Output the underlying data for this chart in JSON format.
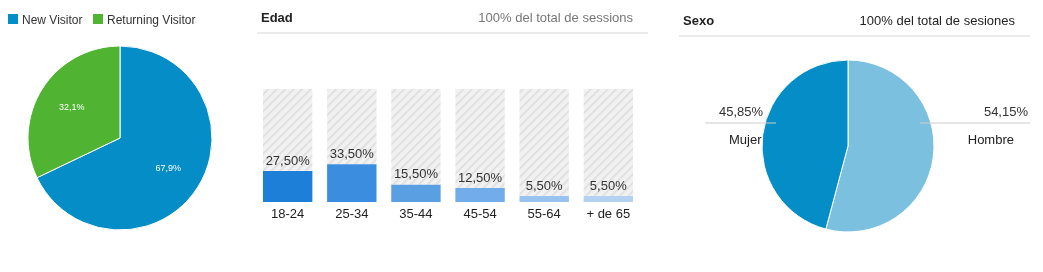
{
  "chart_data": [
    {
      "type": "pie",
      "categories": [
        "New Visitor",
        "Returning Visitor"
      ],
      "values": [
        67.9,
        32.1
      ],
      "colors": [
        "#058dc7",
        "#50b432"
      ],
      "value_labels": [
        "67,9%",
        "32,1%"
      ],
      "legend": "top left"
    },
    {
      "type": "bar",
      "title": "Edad",
      "subtitle": "100% del total de sessions",
      "categories": [
        "18-24",
        "25-34",
        "35-44",
        "45-54",
        "55-64",
        "+ de 65"
      ],
      "stacked": true,
      "series": [
        {
          "values": [
            27.5,
            33.5,
            15.5,
            12.5,
            5.5,
            5.5
          ],
          "colors": [
            "#1e7fd9",
            "#3a8ddf",
            "#5a9fe2",
            "#72acea",
            "#98c3ee",
            "#b3d2f1"
          ],
          "value_labels": [
            "27,50%",
            "33,50%",
            "15,50%",
            "12,50%",
            "5,50%",
            "5,50%"
          ]
        },
        {
          "values": [
            72.5,
            66.5,
            84.5,
            87.5,
            94.5,
            94.5
          ],
          "color": "#eeeeee"
        }
      ],
      "tick_labels": "x"
    },
    {
      "type": "pie",
      "title": "Sexo",
      "subtitle": "100% del total de sesiones",
      "categories": [
        "Hombre",
        "Mujer"
      ],
      "values": [
        54.15,
        45.85
      ],
      "colors": [
        "#7cc0e0",
        "#058dc7"
      ],
      "value_labels": [
        "54,15%",
        "45,85%"
      ],
      "legend": false
    }
  ]
}
